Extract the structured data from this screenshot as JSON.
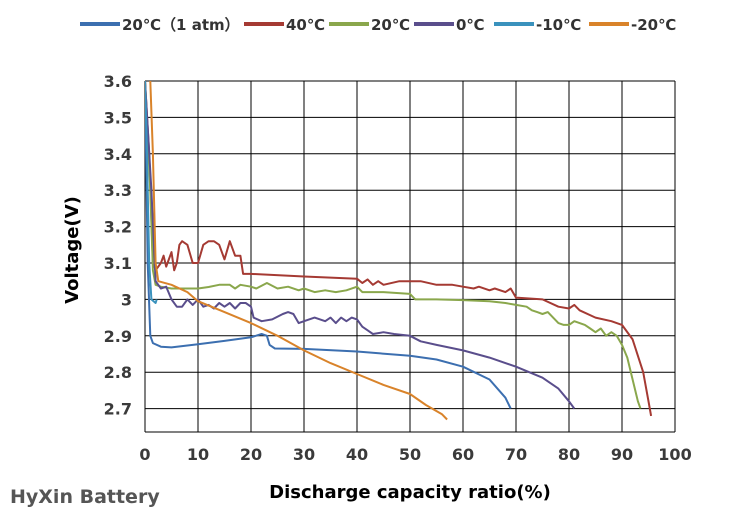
{
  "watermark": "HyXin Battery",
  "chart_data": {
    "type": "line",
    "title": "",
    "xlabel": "Discharge capacity ratio(%)",
    "ylabel": "Voltage(V)",
    "xlim": [
      0,
      100
    ],
    "ylim": [
      2.65,
      3.6
    ],
    "x_ticks": [
      0,
      10,
      20,
      30,
      40,
      50,
      60,
      70,
      80,
      90,
      100
    ],
    "y_ticks": [
      2.7,
      2.8,
      2.9,
      3,
      3.1,
      3.2,
      3.3,
      3.4,
      3.5,
      3.6
    ],
    "grid": true,
    "legend_position": "top",
    "series": [
      {
        "name": "20℃（1 atm）",
        "color": "#3c6fb0",
        "points": [
          [
            0,
            3.6
          ],
          [
            0.5,
            3.1
          ],
          [
            1,
            2.9
          ],
          [
            1.5,
            2.88
          ],
          [
            3,
            2.87
          ],
          [
            5,
            2.868
          ],
          [
            10,
            2.877
          ],
          [
            15,
            2.886
          ],
          [
            20,
            2.896
          ],
          [
            22,
            2.905
          ],
          [
            23,
            2.9
          ],
          [
            23.5,
            2.875
          ],
          [
            24.5,
            2.865
          ],
          [
            30,
            2.864
          ],
          [
            40,
            2.857
          ],
          [
            50,
            2.845
          ],
          [
            55,
            2.835
          ],
          [
            60,
            2.815
          ],
          [
            65,
            2.78
          ],
          [
            68,
            2.73
          ],
          [
            69,
            2.7
          ]
        ]
      },
      {
        "name": "40℃",
        "color": "#a53a33",
        "points": [
          [
            0,
            3.6
          ],
          [
            0.8,
            3.4
          ],
          [
            1.5,
            3.1
          ],
          [
            2,
            3.08
          ],
          [
            3,
            3.1
          ],
          [
            3.5,
            3.12
          ],
          [
            4,
            3.09
          ],
          [
            5,
            3.13
          ],
          [
            5.5,
            3.08
          ],
          [
            6,
            3.1
          ],
          [
            6.5,
            3.15
          ],
          [
            7,
            3.16
          ],
          [
            8,
            3.15
          ],
          [
            9,
            3.1
          ],
          [
            10,
            3.1
          ],
          [
            11,
            3.15
          ],
          [
            12,
            3.16
          ],
          [
            13,
            3.16
          ],
          [
            14,
            3.15
          ],
          [
            15,
            3.11
          ],
          [
            16,
            3.16
          ],
          [
            17,
            3.12
          ],
          [
            18,
            3.12
          ],
          [
            18.5,
            3.07
          ],
          [
            20,
            3.07
          ],
          [
            30,
            3.063
          ],
          [
            40,
            3.057
          ],
          [
            41,
            3.045
          ],
          [
            42,
            3.055
          ],
          [
            43,
            3.04
          ],
          [
            44,
            3.05
          ],
          [
            45,
            3.04
          ],
          [
            48,
            3.05
          ],
          [
            52,
            3.05
          ],
          [
            55,
            3.04
          ],
          [
            58,
            3.04
          ],
          [
            60,
            3.035
          ],
          [
            62,
            3.03
          ],
          [
            63,
            3.035
          ],
          [
            65,
            3.025
          ],
          [
            66,
            3.03
          ],
          [
            68,
            3.02
          ],
          [
            69,
            3.03
          ],
          [
            70,
            3.005
          ],
          [
            75,
            3.0
          ],
          [
            78,
            2.98
          ],
          [
            80,
            2.975
          ],
          [
            81,
            2.985
          ],
          [
            82,
            2.97
          ],
          [
            85,
            2.95
          ],
          [
            88,
            2.94
          ],
          [
            90,
            2.93
          ],
          [
            92,
            2.89
          ],
          [
            94,
            2.8
          ],
          [
            95,
            2.72
          ],
          [
            95.5,
            2.68
          ]
        ]
      },
      {
        "name": "20℃",
        "color": "#8aa74c",
        "points": [
          [
            0,
            3.6
          ],
          [
            1,
            3.3
          ],
          [
            1.5,
            3.08
          ],
          [
            2,
            3.04
          ],
          [
            3,
            3.035
          ],
          [
            5,
            3.03
          ],
          [
            8,
            3.03
          ],
          [
            10,
            3.03
          ],
          [
            12,
            3.034
          ],
          [
            14,
            3.04
          ],
          [
            16,
            3.04
          ],
          [
            17,
            3.03
          ],
          [
            18,
            3.04
          ],
          [
            20,
            3.035
          ],
          [
            21,
            3.03
          ],
          [
            23,
            3.045
          ],
          [
            25,
            3.03
          ],
          [
            27,
            3.035
          ],
          [
            29,
            3.025
          ],
          [
            30,
            3.03
          ],
          [
            32,
            3.02
          ],
          [
            34,
            3.025
          ],
          [
            36,
            3.02
          ],
          [
            38,
            3.025
          ],
          [
            40,
            3.035
          ],
          [
            41,
            3.02
          ],
          [
            45,
            3.02
          ],
          [
            50,
            3.015
          ],
          [
            51,
            3.0
          ],
          [
            55,
            3.0
          ],
          [
            60,
            2.998
          ],
          [
            65,
            2.995
          ],
          [
            68,
            2.99
          ],
          [
            70,
            2.985
          ],
          [
            72,
            2.98
          ],
          [
            73,
            2.97
          ],
          [
            74,
            2.965
          ],
          [
            75,
            2.96
          ],
          [
            76,
            2.965
          ],
          [
            77,
            2.95
          ],
          [
            78,
            2.935
          ],
          [
            79,
            2.93
          ],
          [
            80,
            2.93
          ],
          [
            81,
            2.94
          ],
          [
            82,
            2.935
          ],
          [
            83,
            2.93
          ],
          [
            84,
            2.92
          ],
          [
            85,
            2.91
          ],
          [
            86,
            2.92
          ],
          [
            87,
            2.9
          ],
          [
            88,
            2.91
          ],
          [
            89,
            2.9
          ],
          [
            90,
            2.875
          ],
          [
            91,
            2.84
          ],
          [
            92,
            2.78
          ],
          [
            93,
            2.72
          ],
          [
            93.5,
            2.7
          ]
        ]
      },
      {
        "name": "0℃",
        "color": "#5a4e8c",
        "points": [
          [
            0,
            3.6
          ],
          [
            1.2,
            3.3
          ],
          [
            2,
            3.05
          ],
          [
            3,
            3.03
          ],
          [
            4,
            3.035
          ],
          [
            5,
            3.0
          ],
          [
            6,
            2.98
          ],
          [
            7,
            2.98
          ],
          [
            8,
            3.0
          ],
          [
            9,
            2.985
          ],
          [
            10,
            3.0
          ],
          [
            11,
            2.98
          ],
          [
            12,
            2.985
          ],
          [
            13,
            2.975
          ],
          [
            14,
            2.99
          ],
          [
            15,
            2.98
          ],
          [
            16,
            2.99
          ],
          [
            17,
            2.975
          ],
          [
            18,
            2.99
          ],
          [
            19,
            2.99
          ],
          [
            20,
            2.98
          ],
          [
            20.5,
            2.95
          ],
          [
            22,
            2.94
          ],
          [
            24,
            2.945
          ],
          [
            26,
            2.96
          ],
          [
            27,
            2.965
          ],
          [
            28,
            2.96
          ],
          [
            29,
            2.935
          ],
          [
            30,
            2.94
          ],
          [
            32,
            2.95
          ],
          [
            34,
            2.94
          ],
          [
            35,
            2.95
          ],
          [
            36,
            2.935
          ],
          [
            37,
            2.95
          ],
          [
            38,
            2.94
          ],
          [
            39,
            2.95
          ],
          [
            40,
            2.945
          ],
          [
            41,
            2.925
          ],
          [
            42,
            2.915
          ],
          [
            43,
            2.905
          ],
          [
            45,
            2.91
          ],
          [
            47,
            2.905
          ],
          [
            50,
            2.9
          ],
          [
            52,
            2.885
          ],
          [
            55,
            2.875
          ],
          [
            60,
            2.86
          ],
          [
            65,
            2.84
          ],
          [
            70,
            2.815
          ],
          [
            75,
            2.785
          ],
          [
            78,
            2.755
          ],
          [
            80,
            2.72
          ],
          [
            81,
            2.7
          ]
        ]
      },
      {
        "name": "-10℃",
        "color": "#3a92bd",
        "points": [
          [
            0,
            3.6
          ],
          [
            0.3,
            3.45
          ],
          [
            0.8,
            3.1
          ],
          [
            1.2,
            3.0
          ],
          [
            2,
            2.99
          ],
          [
            2.2,
            3.0
          ]
        ]
      },
      {
        "name": "-20℃",
        "color": "#d9832a",
        "points": [
          [
            1,
            3.6
          ],
          [
            1.5,
            3.4
          ],
          [
            2,
            3.1
          ],
          [
            2.5,
            3.05
          ],
          [
            5,
            3.04
          ],
          [
            8,
            3.02
          ],
          [
            10,
            2.995
          ],
          [
            15,
            2.965
          ],
          [
            20,
            2.935
          ],
          [
            25,
            2.9
          ],
          [
            30,
            2.86
          ],
          [
            35,
            2.825
          ],
          [
            40,
            2.795
          ],
          [
            45,
            2.765
          ],
          [
            50,
            2.74
          ],
          [
            53,
            2.71
          ],
          [
            56,
            2.685
          ],
          [
            57,
            2.67
          ]
        ]
      }
    ]
  }
}
